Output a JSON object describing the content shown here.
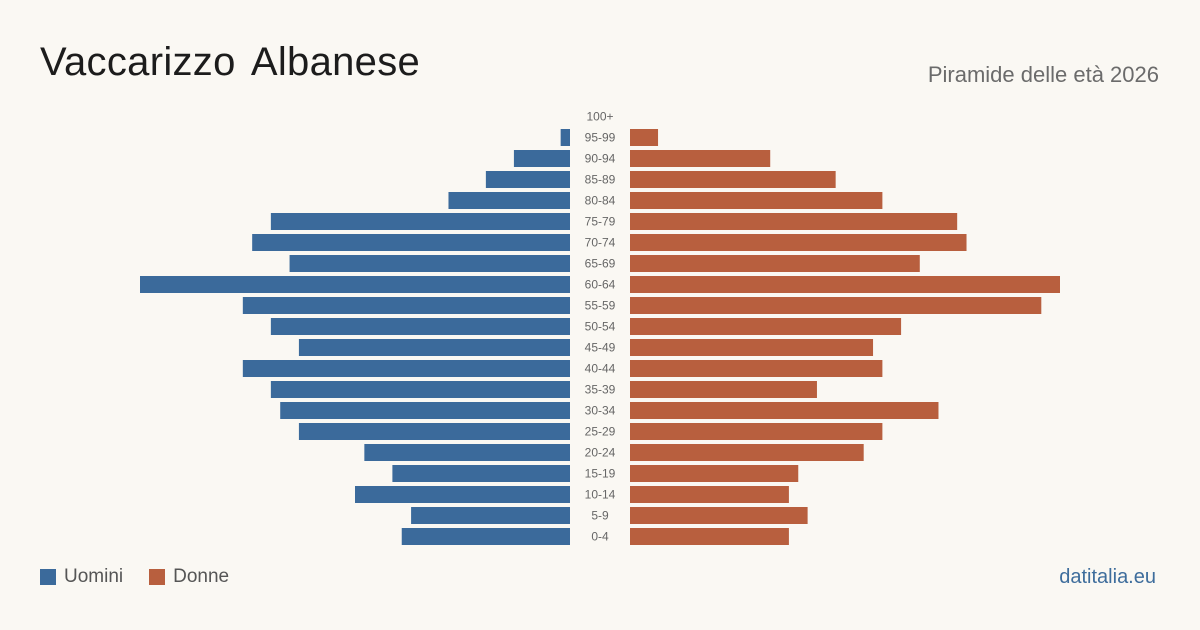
{
  "header": {
    "title": "Vaccarizzo Albanese",
    "subtitle": "Piramide delle età 2026"
  },
  "legend": {
    "men_label": "Uomini",
    "women_label": "Donne"
  },
  "footer": {
    "source": "datitalia.eu"
  },
  "colors": {
    "men": "#3b6a9b",
    "women": "#b85f3e",
    "background": "#faf8f3"
  },
  "chart_data": {
    "type": "bar",
    "orientation": "horizontal",
    "variant": "population-pyramid",
    "categories": [
      "100+",
      "95-99",
      "90-94",
      "85-89",
      "80-84",
      "75-79",
      "70-74",
      "65-69",
      "60-64",
      "55-59",
      "50-54",
      "45-49",
      "40-44",
      "35-39",
      "30-34",
      "25-29",
      "20-24",
      "15-19",
      "10-14",
      "5-9",
      "0-4"
    ],
    "series": [
      {
        "name": "Uomini",
        "side": "left",
        "values": [
          0,
          1,
          6,
          9,
          13,
          32,
          34,
          30,
          46,
          35,
          32,
          29,
          35,
          32,
          31,
          29,
          22,
          19,
          23,
          17,
          18
        ]
      },
      {
        "name": "Donne",
        "side": "right",
        "values": [
          0,
          3,
          15,
          22,
          27,
          35,
          36,
          31,
          46,
          44,
          29,
          26,
          27,
          20,
          33,
          27,
          25,
          18,
          17,
          19,
          17
        ]
      }
    ],
    "xlim": [
      0,
      46
    ],
    "legend_position": "bottom-left",
    "grid": false
  }
}
